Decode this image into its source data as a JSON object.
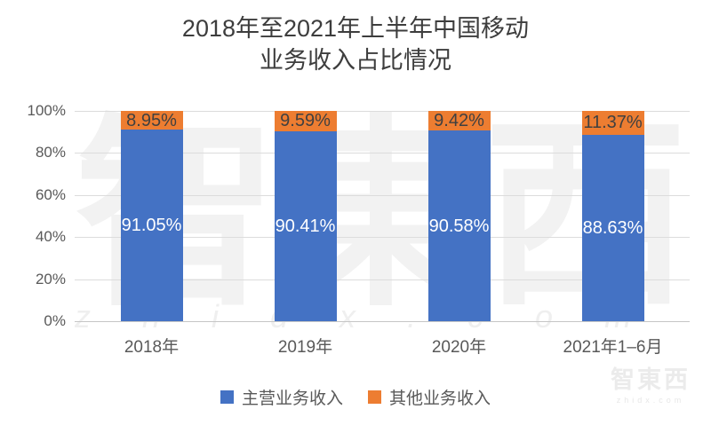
{
  "title": {
    "line1": "2018年至2021年上半年中国移动",
    "line2": "业务收入占比情况"
  },
  "watermark": {
    "big_text": "智東西",
    "url_text": "zhidx.com"
  },
  "brand_logo": {
    "text": "智東西",
    "url": "zhidx.com"
  },
  "chart_data": {
    "type": "bar",
    "stacked": true,
    "percent_stacked": true,
    "title": "2018年至2021年上半年中国移动业务收入占比情况",
    "categories": [
      "2018年",
      "2019年",
      "2020年",
      "2021年1–6月"
    ],
    "series": [
      {
        "name": "主营业务收入",
        "color": "#4472C4",
        "values": [
          91.05,
          90.41,
          90.58,
          88.63
        ],
        "labels": [
          "91.05%",
          "90.41%",
          "90.58%",
          "88.63%"
        ],
        "label_color": "#FFFFFF"
      },
      {
        "name": "其他业务收入",
        "color": "#ED7D31",
        "values": [
          8.95,
          9.59,
          9.42,
          11.37
        ],
        "labels": [
          "8.95%",
          "9.59%",
          "9.42%",
          "11.37%"
        ],
        "label_color": "#404040"
      }
    ],
    "yticks": [
      "0%",
      "20%",
      "40%",
      "60%",
      "80%",
      "100%"
    ],
    "ylim": [
      0,
      100
    ],
    "grid": true,
    "legend_position": "bottom",
    "xlabel": "",
    "ylabel": ""
  }
}
